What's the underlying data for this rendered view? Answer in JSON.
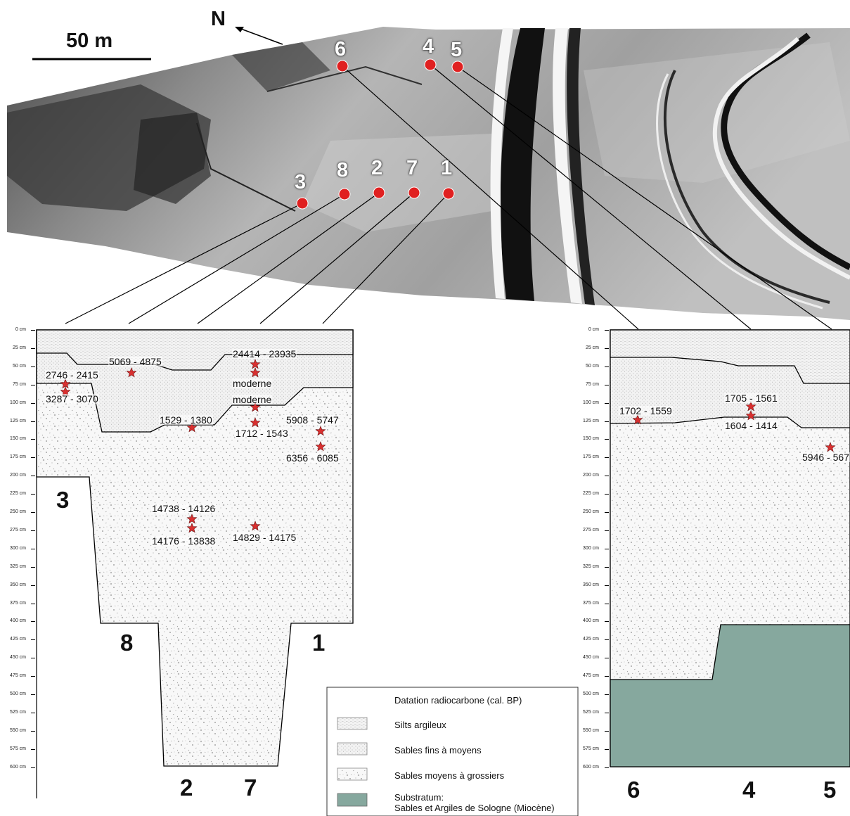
{
  "scale_bar": {
    "label": "50 m"
  },
  "north": {
    "label": "N"
  },
  "map_points": [
    {
      "id": "6"
    },
    {
      "id": "4"
    },
    {
      "id": "5"
    },
    {
      "id": "3"
    },
    {
      "id": "8"
    },
    {
      "id": "2"
    },
    {
      "id": "7"
    },
    {
      "id": "1"
    }
  ],
  "depth_axis": {
    "ticks": [
      "0 cm",
      "25 cm",
      "50 cm",
      "75 cm",
      "100 cm",
      "125 cm",
      "150 cm",
      "175 cm",
      "200 cm",
      "225 cm",
      "250 cm",
      "275 cm",
      "300 cm",
      "325 cm",
      "350 cm",
      "375 cm",
      "400 cm",
      "425 cm",
      "450 cm",
      "475 cm",
      "500 cm",
      "525 cm",
      "550 cm",
      "575 cm",
      "600 cm"
    ]
  },
  "left_section": {
    "core_labels": [
      "3",
      "8",
      "2",
      "7",
      "1"
    ],
    "dates": {
      "d1": "5069 - 4875",
      "d2": "24414 - 23935",
      "d3": "2746 - 2415",
      "d4": "moderne",
      "d5": "3287 - 3070",
      "d6": "moderne",
      "d7": "1529 - 1380",
      "d8": "5908 - 5747",
      "d9": "1712 - 1543",
      "d10": "6356 - 6085",
      "d11": "14738 - 14126",
      "d12": "14176 - 13838",
      "d13": "14829 - 14175"
    }
  },
  "right_section": {
    "core_labels": [
      "6",
      "4",
      "5"
    ],
    "dates": {
      "r1": "1705 - 1561",
      "r2": "1702 - 1559",
      "r3": "1604 - 1414",
      "r4": "5946 - 567"
    }
  },
  "legend": {
    "items": [
      {
        "label": "Datation radiocarbone (cal. BP)"
      },
      {
        "label": "Silts argileux"
      },
      {
        "label": "Sables fins à moyens"
      },
      {
        "label": "Sables moyens à grossiers"
      },
      {
        "label": "Substratum:",
        "label2": "Sables et Argiles de Sologne (Miocène)"
      }
    ]
  },
  "colors": {
    "marker": "#e02020",
    "star": "#d93030",
    "substratum": "#86a89e"
  }
}
